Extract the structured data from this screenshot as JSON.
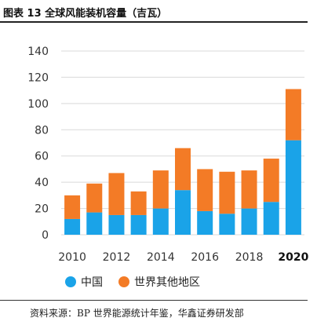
{
  "title": "图表 13 全球风能装机容量（吉瓦）",
  "source": "资料来源：BP 世界能源统计年鉴，华鑫证券研发部",
  "colors": {
    "china": "#1aa3e8",
    "rest": "#f37b26",
    "grid": "#d9d9d9"
  },
  "chart_data": {
    "type": "bar",
    "stacked": true,
    "categories": [
      "2010",
      "2011",
      "2012",
      "2013",
      "2014",
      "2015",
      "2016",
      "2017",
      "2018",
      "2019",
      "2020"
    ],
    "x_tick_labels": [
      "2010",
      "2012",
      "2014",
      "2016",
      "2018",
      "2020"
    ],
    "series": [
      {
        "name": "中国",
        "values": [
          12,
          17,
          15,
          15,
          20,
          34,
          18,
          16,
          20,
          25,
          72
        ]
      },
      {
        "name": "世界其他地区",
        "values": [
          18,
          22,
          32,
          18,
          29,
          32,
          32,
          32,
          29,
          33,
          39
        ]
      }
    ],
    "ylim": [
      0,
      140
    ],
    "yticks": [
      0,
      20,
      40,
      60,
      80,
      100,
      120,
      140
    ],
    "grid": true,
    "legend_position": "bottom"
  }
}
